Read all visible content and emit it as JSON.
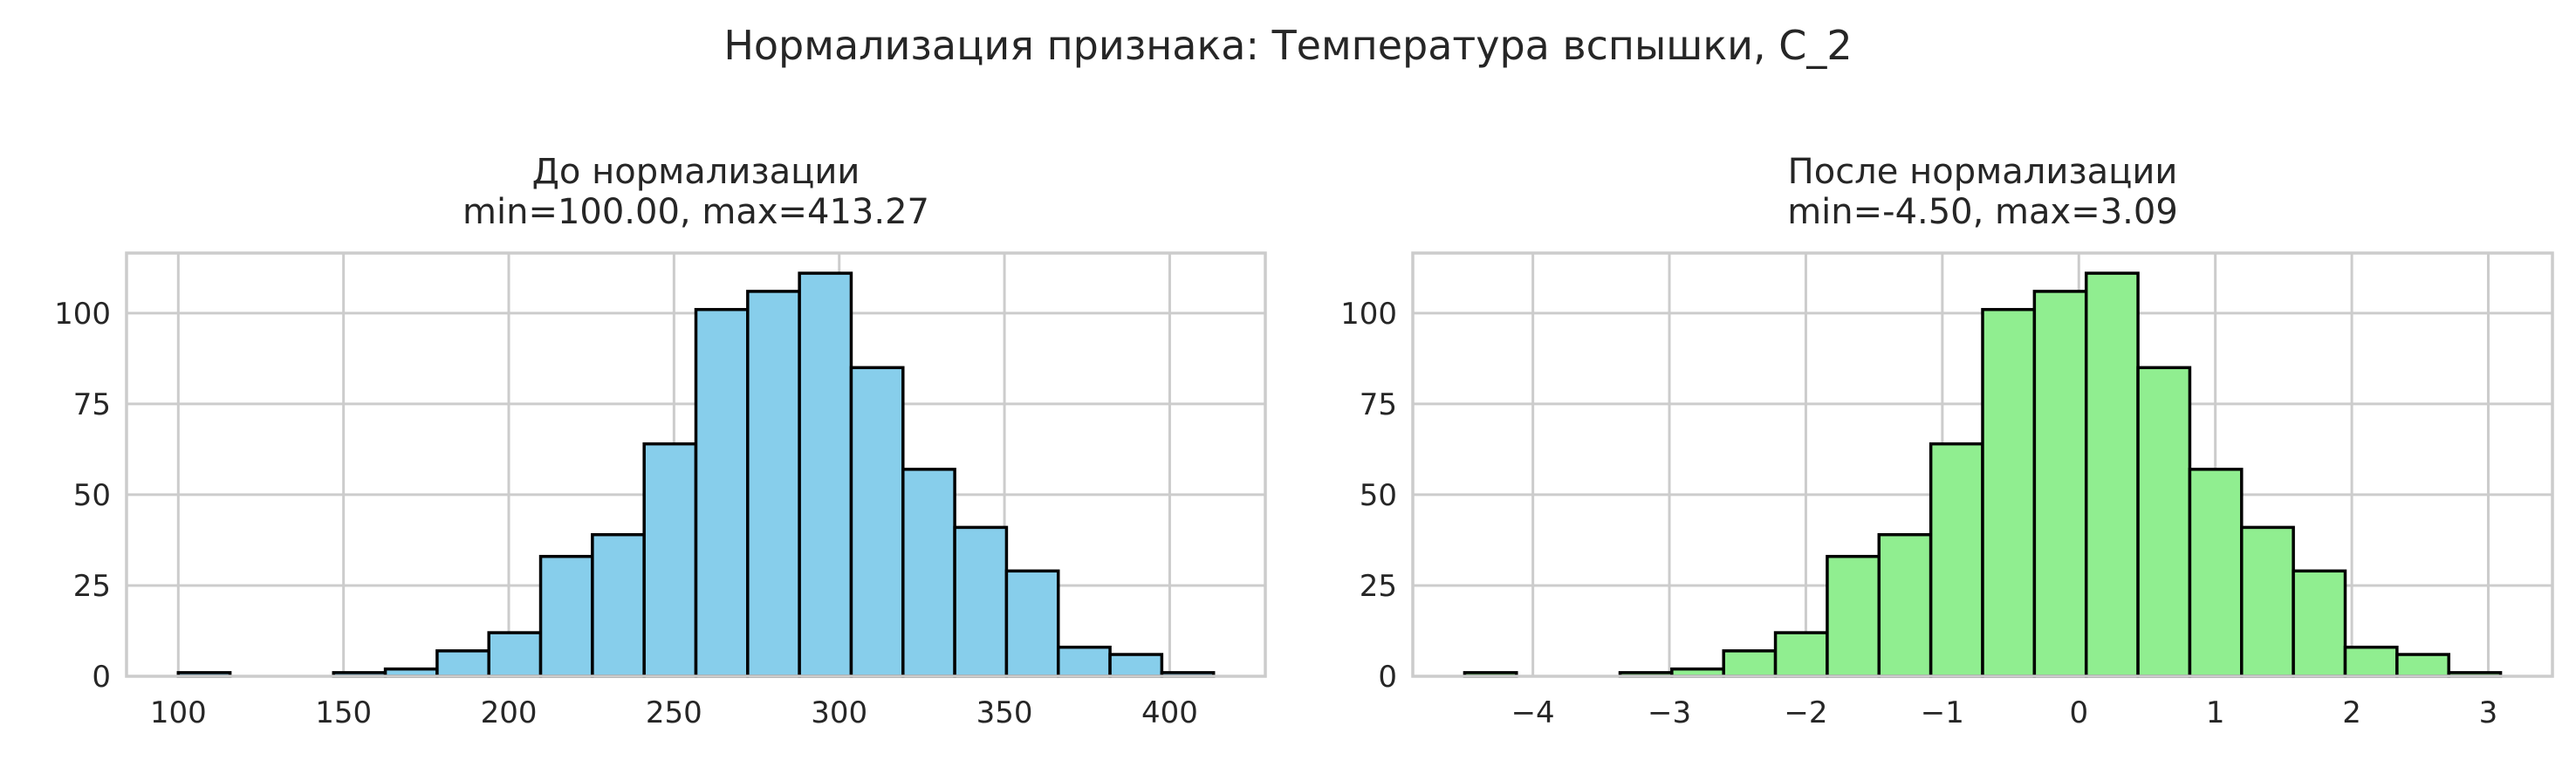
{
  "figure": {
    "suptitle": "Нормализация признака: Температура вспышки, C_2"
  },
  "chart_data": [
    {
      "type": "bar",
      "title": "До нормализации\nmin=100.00, max=413.27",
      "xlabel": "",
      "ylabel": "",
      "bar_color": "#87CEEB",
      "edge_color": "#000000",
      "bin_start": 100.0,
      "bin_end": 413.27,
      "counts": [
        1,
        0,
        0,
        1,
        2,
        7,
        12,
        33,
        39,
        64,
        101,
        106,
        111,
        85,
        57,
        41,
        29,
        8,
        6,
        1
      ],
      "xlim": [
        84.34,
        428.93
      ],
      "ylim": [
        0,
        116.55
      ],
      "xticks": [
        100,
        150,
        200,
        250,
        300,
        350,
        400
      ],
      "yticks": [
        0,
        25,
        50,
        75,
        100
      ],
      "xtick_labels": [
        "100",
        "150",
        "200",
        "250",
        "300",
        "350",
        "400"
      ],
      "ytick_labels": [
        "0",
        "25",
        "50",
        "75",
        "100"
      ],
      "grid": true
    },
    {
      "type": "bar",
      "title": "После нормализации\nmin=-4.50, max=3.09",
      "xlabel": "",
      "ylabel": "",
      "bar_color": "#90EE90",
      "edge_color": "#000000",
      "bin_start": -4.5,
      "bin_end": 3.09,
      "counts": [
        1,
        0,
        0,
        1,
        2,
        7,
        12,
        33,
        39,
        64,
        101,
        106,
        111,
        85,
        57,
        41,
        29,
        8,
        6,
        1
      ],
      "xlim": [
        -4.88,
        3.47
      ],
      "ylim": [
        0,
        116.55
      ],
      "xticks": [
        -4,
        -3,
        -2,
        -1,
        0,
        1,
        2,
        3
      ],
      "yticks": [
        0,
        25,
        50,
        75,
        100
      ],
      "xtick_labels": [
        "−4",
        "−3",
        "−2",
        "−1",
        "0",
        "1",
        "2",
        "3"
      ],
      "ytick_labels": [
        "0",
        "25",
        "50",
        "75",
        "100"
      ],
      "grid": true
    }
  ]
}
